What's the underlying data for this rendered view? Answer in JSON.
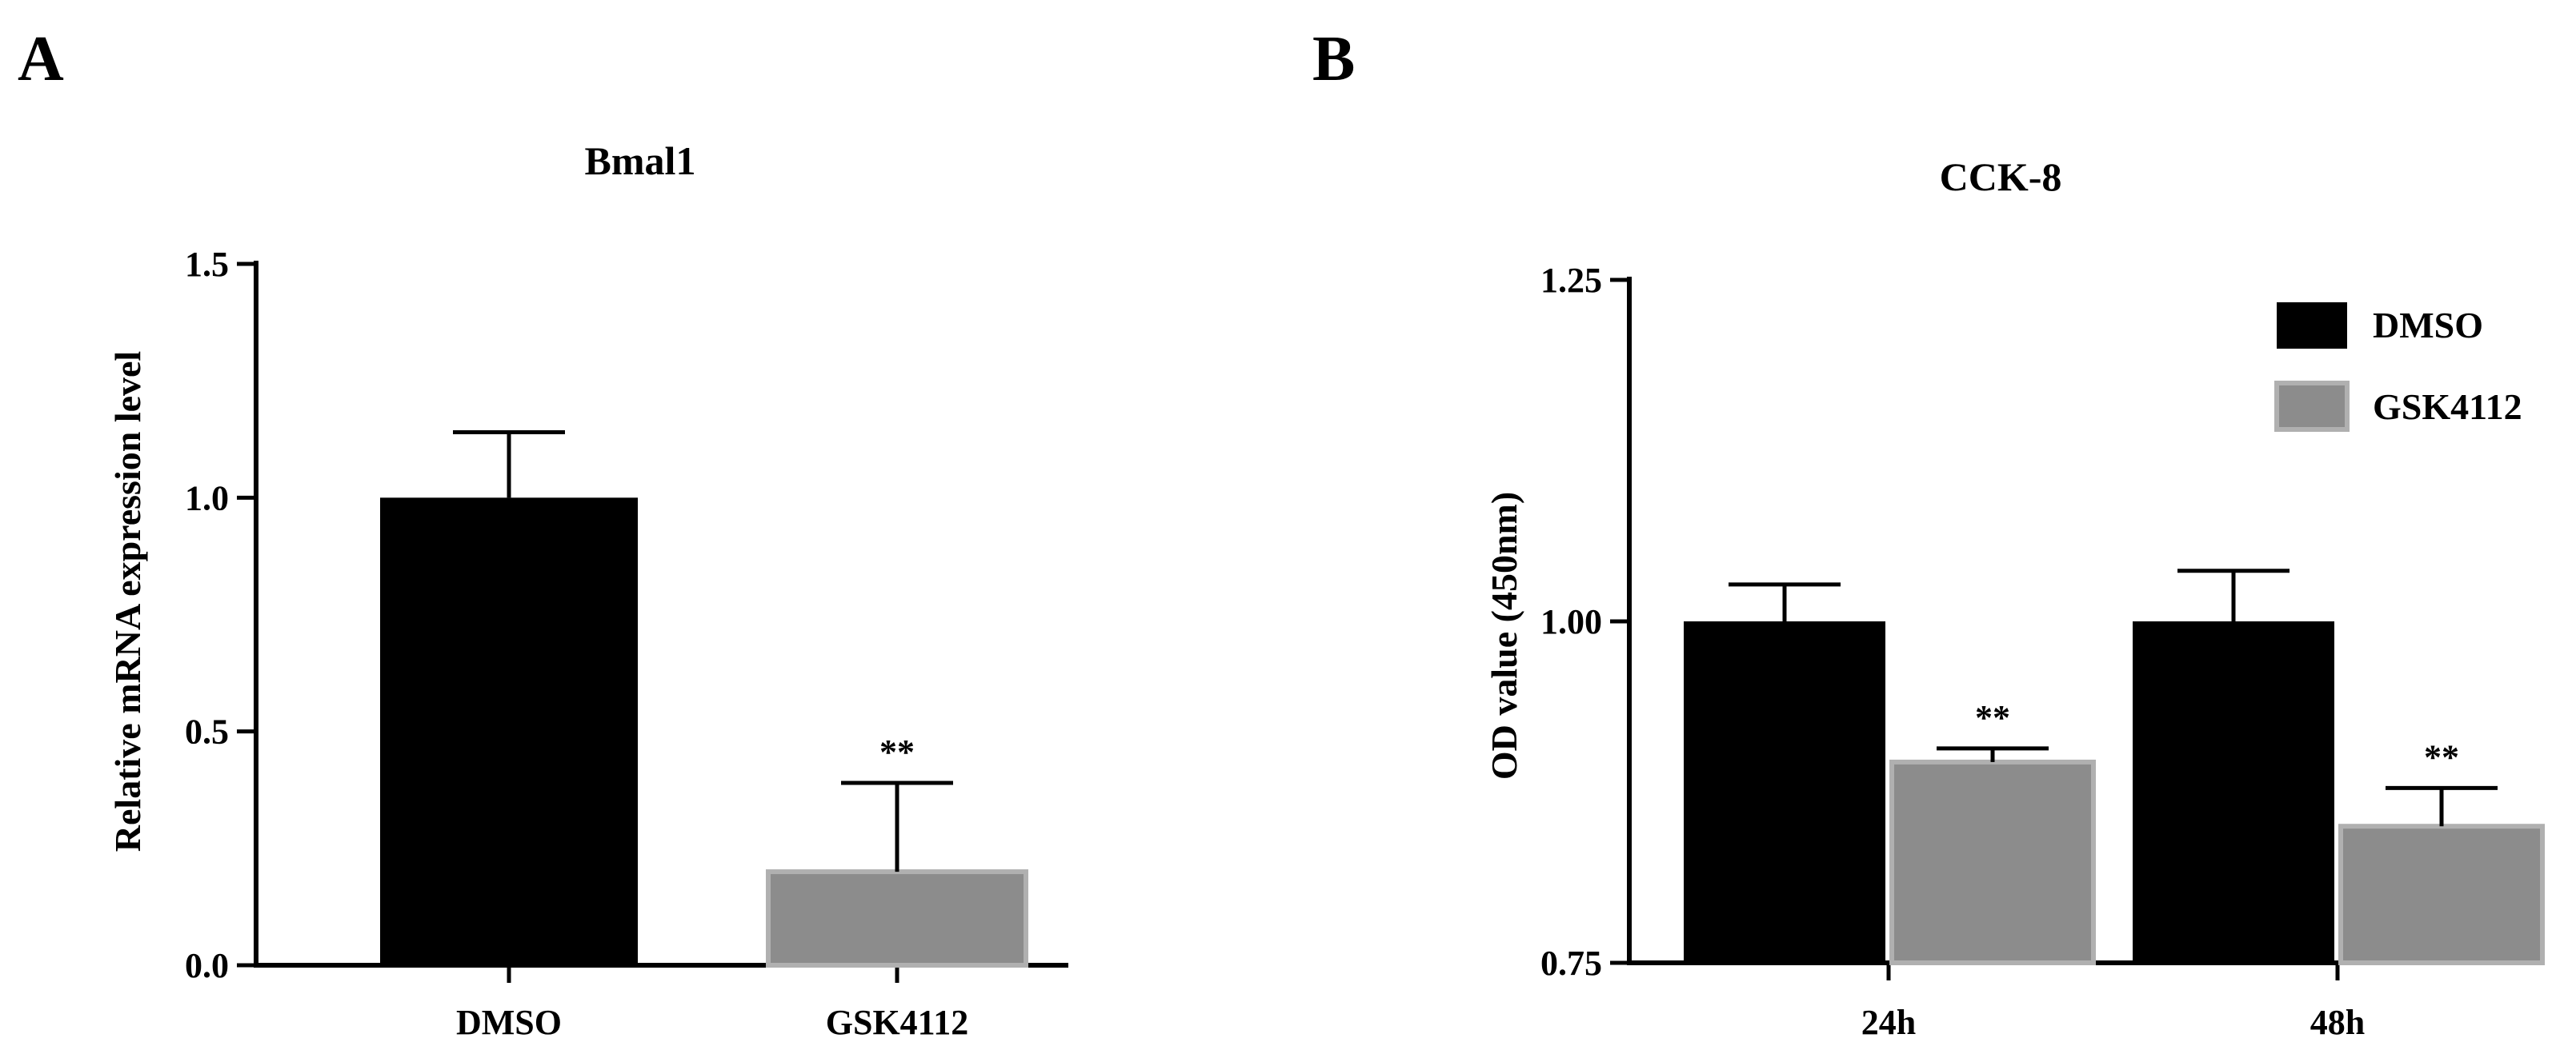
{
  "chart_data": [
    {
      "panel": "A",
      "type": "bar",
      "title": "Bmal1",
      "xlabel": "",
      "ylabel": "Relative mRNA expression level",
      "ylim": [
        0,
        1.5
      ],
      "yticks": [
        "0.0",
        "0.5",
        "1.0",
        "1.5"
      ],
      "categories": [
        "DMSO",
        "GSK4112"
      ],
      "values": [
        1.0,
        0.2
      ],
      "errors": [
        0.14,
        0.19
      ],
      "colors": [
        "#000000",
        "#8c8c8c"
      ],
      "annotations": [
        "",
        "**"
      ]
    },
    {
      "panel": "B",
      "type": "bar",
      "title": "CCK-8",
      "xlabel": "",
      "ylabel": "OD  value (450nm)",
      "ylim": [
        0.75,
        1.25
      ],
      "yticks": [
        "0.75",
        "1.00",
        "1.25"
      ],
      "categories": [
        "24h",
        "48h"
      ],
      "legend_position": "top-right",
      "series": [
        {
          "name": "DMSO",
          "color": "#000000",
          "values": [
            1.0,
            1.0
          ],
          "errors": [
            0.027,
            0.037
          ],
          "annotations": [
            "",
            ""
          ]
        },
        {
          "name": "GSK4112",
          "color": "#8c8c8c",
          "values": [
            0.897,
            0.85
          ],
          "errors": [
            0.01,
            0.028
          ],
          "annotations": [
            "**",
            "**"
          ]
        }
      ]
    }
  ]
}
